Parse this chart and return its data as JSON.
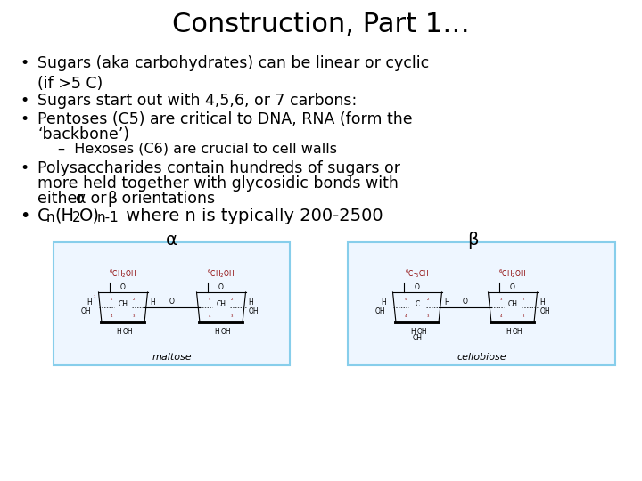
{
  "title": "Construction, Part 1…",
  "title_fontsize": 22,
  "background_color": "#ffffff",
  "text_color": "#000000",
  "main_fontsize": 12.5,
  "sub_fontsize": 11.5,
  "formula_fontsize": 14,
  "bullet1": "Sugars (aka carbohydrates) can be linear or cyclic\n(if >5 C)",
  "bullet2": "Sugars start out with 4,5,6, or 7 carbons:",
  "bullet3a": "Pentoses (C5) are critical to DNA, RNA (form the",
  "bullet3b": "‘backbone’)",
  "sub_bullet": "–  Hexoses (C6) are crucial to cell walls",
  "bullet4a": "Polysaccharides contain hundreds of sugars or",
  "bullet4b": "more held together with glycosidic bonds with",
  "bullet4c_pre": "either ",
  "bullet4c_alpha": "α",
  "bullet4c_mid": " or ",
  "bullet4c_beta": "β",
  "bullet4c_post": " orientations",
  "alpha_label": "α",
  "beta_label": "β",
  "box1_label": "maltose",
  "box2_label": "cellobiose",
  "box_border_color": "#87CEEB",
  "box_fill_color": "#EEF6FF"
}
